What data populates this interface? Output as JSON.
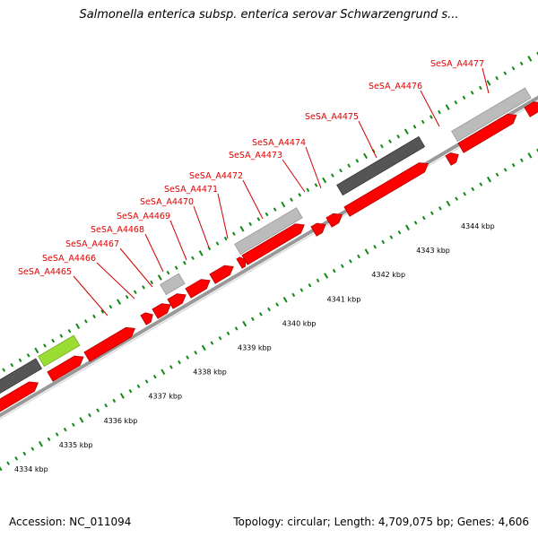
{
  "title": "Salmonella enterica subsp. enterica serovar Schwarzengrund s...",
  "footer": {
    "accession": "Accession: NC_011094",
    "summary": "Topology: circular; Length: 4,709,075 bp; Genes: 4,606"
  },
  "colors": {
    "cds": "#ff0000",
    "cds_dark": "#b30000",
    "gray_feature": "#bbbbbb",
    "dark_feature": "#555555",
    "green_feature": "#99dd33",
    "tick": "#118811",
    "gene_label": "#e00000",
    "backbone": "#999999"
  },
  "ticks": {
    "labels": [
      "4334 kbp",
      "4335 kbp",
      "4336 kbp",
      "4337 kbp",
      "4338 kbp",
      "4339 kbp",
      "4340 kbp",
      "4341 kbp",
      "4342 kbp",
      "4343 kbp",
      "4344 kbp"
    ],
    "positions_kbp": [
      4334,
      4335,
      4336,
      4337,
      4338,
      4339,
      4340,
      4341,
      4342,
      4343,
      4344
    ]
  },
  "gene_labels": [
    "SeSA_A4465",
    "SeSA_A4466",
    "SeSA_A4467",
    "SeSA_A4468",
    "SeSA_A4469",
    "SeSA_A4470",
    "SeSA_A4471",
    "SeSA_A4472",
    "SeSA_A4473",
    "SeSA_A4474",
    "SeSA_A4475",
    "SeSA_A4476",
    "SeSA_A4477"
  ]
}
